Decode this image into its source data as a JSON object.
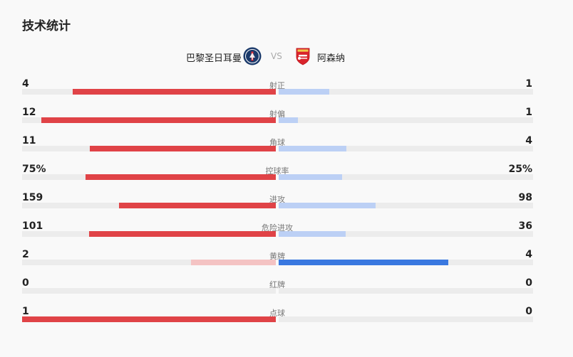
{
  "section_title": "技术统计",
  "teams": {
    "home": {
      "name": "巴黎圣日耳曼",
      "badge_icon": "psg-crest-icon"
    },
    "vs": "VS",
    "away": {
      "name": "阿森纳",
      "badge_icon": "arsenal-crest-icon"
    }
  },
  "colors": {
    "home_bar": "#e04347",
    "home_bar_light": "#f4c3c3",
    "away_bar": "#bcd0f5",
    "away_bar_strong": "#3a78e0",
    "track": "#ececec"
  },
  "stats": [
    {
      "label": "射正",
      "home": "4",
      "away": "1",
      "home_share": 0.8,
      "away_share": 0.2
    },
    {
      "label": "射偏",
      "home": "12",
      "away": "1",
      "home_share": 0.923,
      "away_share": 0.077
    },
    {
      "label": "角球",
      "home": "11",
      "away": "4",
      "home_share": 0.733,
      "away_share": 0.267
    },
    {
      "label": "控球率",
      "home": "75%",
      "away": "25%",
      "home_share": 0.75,
      "away_share": 0.25
    },
    {
      "label": "进攻",
      "home": "159",
      "away": "98",
      "home_share": 0.619,
      "away_share": 0.381
    },
    {
      "label": "危险进攻",
      "home": "101",
      "away": "36",
      "home_share": 0.737,
      "away_share": 0.263
    },
    {
      "label": "黄牌",
      "home": "2",
      "away": "4",
      "home_share": 0.333,
      "away_share": 0.667,
      "highlight": "away"
    },
    {
      "label": "红牌",
      "home": "0",
      "away": "0",
      "home_share": 0,
      "away_share": 0
    },
    {
      "label": "点球",
      "home": "1",
      "away": "0",
      "home_share": 1,
      "away_share": 0
    }
  ]
}
